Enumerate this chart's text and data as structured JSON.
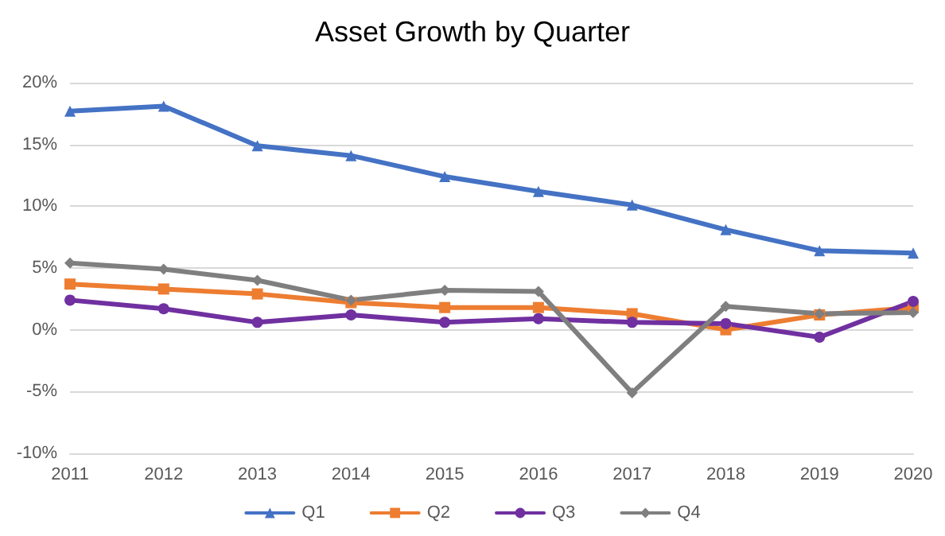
{
  "chart_data": {
    "type": "line",
    "title": "Asset Growth by Quarter",
    "categories": [
      "2011",
      "2012",
      "2013",
      "2014",
      "2015",
      "2016",
      "2017",
      "2018",
      "2019",
      "2020"
    ],
    "series": [
      {
        "name": "Q1",
        "color": "#4472c4",
        "marker": "triangle",
        "values": [
          17.7,
          18.1,
          14.9,
          14.1,
          12.4,
          11.2,
          10.1,
          8.1,
          6.4,
          6.2
        ]
      },
      {
        "name": "Q2",
        "color": "#ed7d31",
        "marker": "square",
        "values": [
          3.7,
          3.3,
          2.9,
          2.2,
          1.8,
          1.8,
          1.3,
          0,
          1.2,
          1.8
        ]
      },
      {
        "name": "Q3",
        "color": "#7030a0",
        "marker": "circle",
        "values": [
          2.4,
          1.7,
          0.6,
          1.2,
          0.6,
          0.9,
          0.6,
          0.5,
          -0.6,
          2.3
        ]
      },
      {
        "name": "Q4",
        "color": "#7f7f7f",
        "marker": "diamond",
        "values": [
          5.4,
          4.9,
          4.0,
          2.4,
          3.2,
          3.1,
          -5.1,
          1.9,
          1.3,
          1.4
        ]
      }
    ],
    "ylim": [
      -10,
      20
    ],
    "yticks": [
      {
        "value": -10,
        "label": "-10%"
      },
      {
        "value": -5,
        "label": "-5%"
      },
      {
        "value": 0,
        "label": "0%"
      },
      {
        "value": 5,
        "label": "5%"
      },
      {
        "value": 10,
        "label": "10%"
      },
      {
        "value": 15,
        "label": "15%"
      },
      {
        "value": 20,
        "label": "20%"
      }
    ],
    "grid": "y",
    "legend": "bottom",
    "line_style": "solid"
  }
}
